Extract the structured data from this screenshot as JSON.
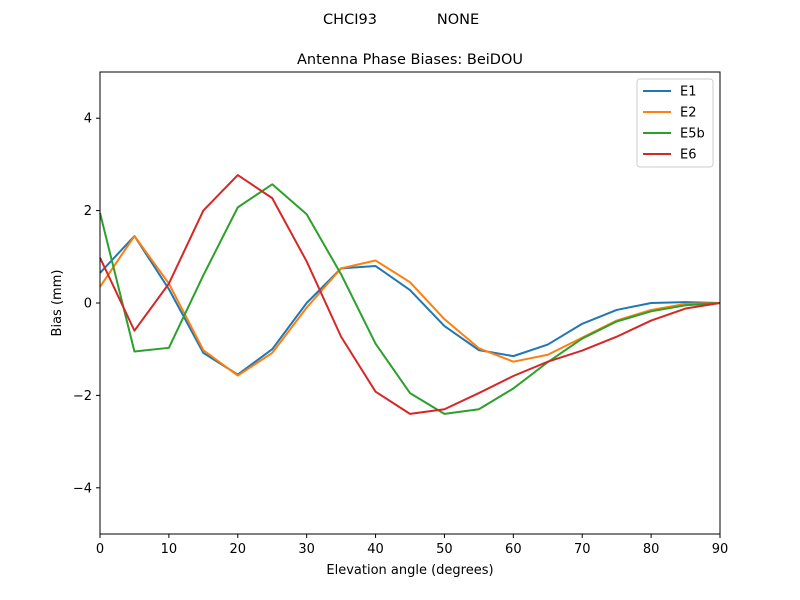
{
  "figure": {
    "suptitle_left": "CHCI93",
    "suptitle_right": "NONE"
  },
  "chart_data": {
    "type": "line",
    "title": "Antenna Phase Biases: BeiDOU",
    "xlabel": "Elevation angle (degrees)",
    "ylabel": "Bias (mm)",
    "xlim": [
      0,
      90
    ],
    "ylim": [
      -5,
      5
    ],
    "xticks": [
      0,
      10,
      20,
      30,
      40,
      50,
      60,
      70,
      80,
      90
    ],
    "yticks": [
      -4,
      -2,
      0,
      2,
      4
    ],
    "grid": false,
    "legend_position": "top-right",
    "x": [
      0,
      5,
      10,
      15,
      20,
      25,
      30,
      35,
      40,
      45,
      50,
      55,
      60,
      65,
      70,
      75,
      80,
      85,
      90
    ],
    "series": [
      {
        "name": "E1",
        "color": "#1f77b4",
        "values": [
          0.65,
          1.45,
          0.3,
          -1.08,
          -1.55,
          -1.0,
          0.0,
          0.75,
          0.8,
          0.28,
          -0.5,
          -1.02,
          -1.15,
          -0.9,
          -0.45,
          -0.15,
          0.0,
          0.02,
          0.0
        ]
      },
      {
        "name": "E2",
        "color": "#ff7f0e",
        "values": [
          0.35,
          1.45,
          0.42,
          -1.02,
          -1.57,
          -1.08,
          -0.1,
          0.75,
          0.92,
          0.45,
          -0.35,
          -0.98,
          -1.27,
          -1.12,
          -0.75,
          -0.38,
          -0.15,
          -0.02,
          0.0
        ]
      },
      {
        "name": "E5b",
        "color": "#2ca02c",
        "values": [
          1.95,
          -1.05,
          -0.97,
          0.6,
          2.07,
          2.57,
          1.92,
          0.62,
          -0.88,
          -1.95,
          -2.4,
          -2.3,
          -1.85,
          -1.28,
          -0.77,
          -0.4,
          -0.18,
          -0.05,
          0.0
        ]
      },
      {
        "name": "E6",
        "color": "#d62728",
        "values": [
          0.98,
          -0.6,
          0.42,
          2.0,
          2.77,
          2.27,
          0.9,
          -0.73,
          -1.92,
          -2.4,
          -2.3,
          -1.95,
          -1.58,
          -1.27,
          -1.03,
          -0.73,
          -0.38,
          -0.12,
          0.0
        ]
      }
    ]
  }
}
